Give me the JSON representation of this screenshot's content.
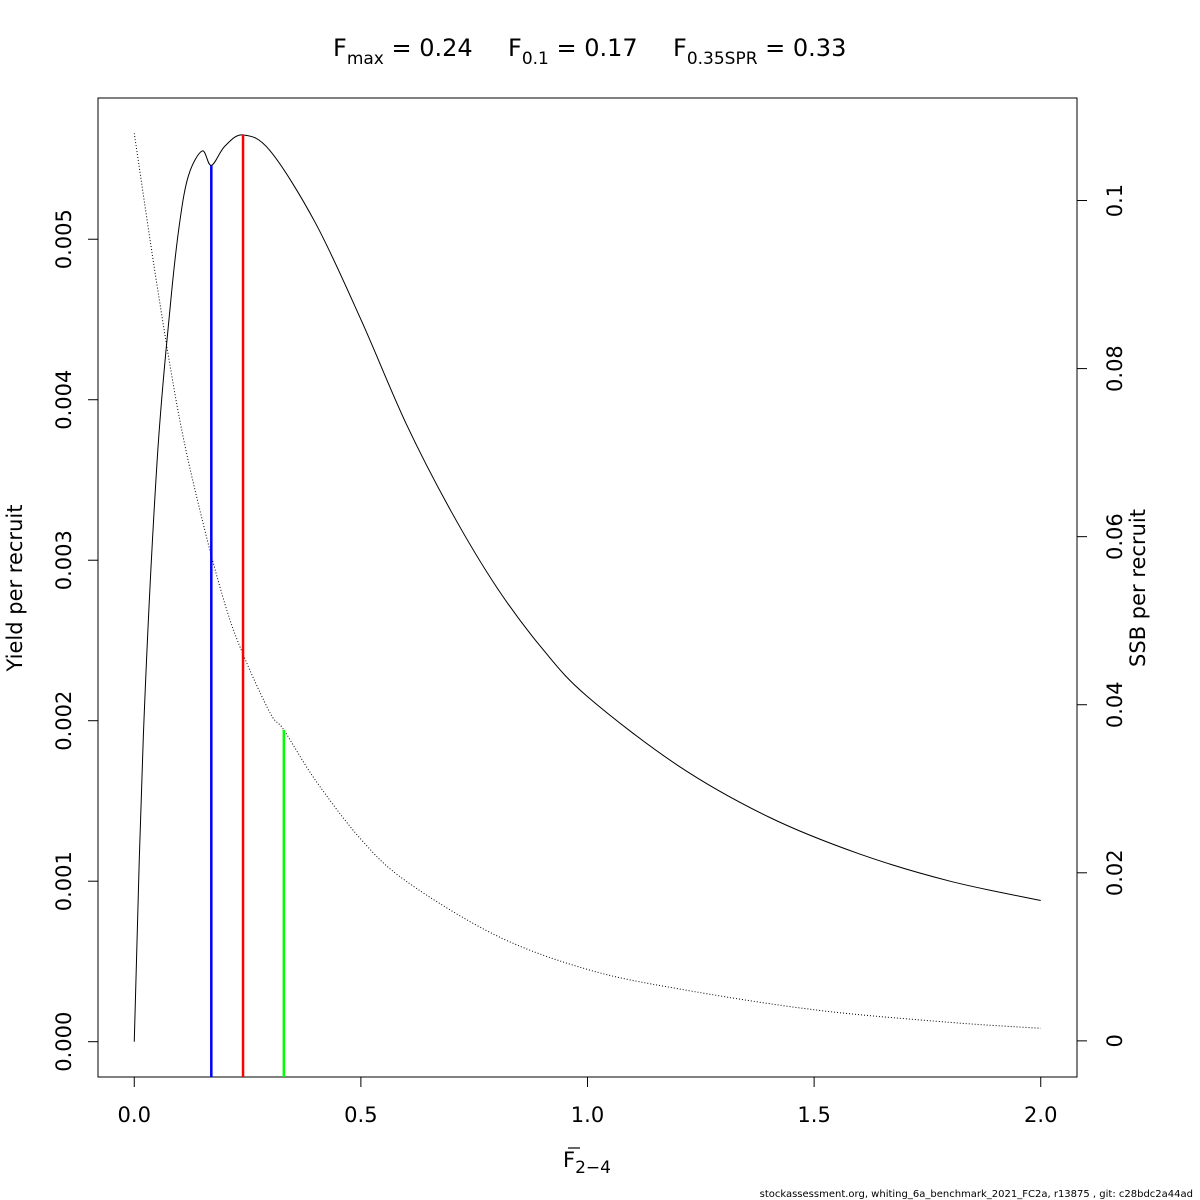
{
  "chart_data": {
    "type": "line",
    "title": {
      "fmax": {
        "main": "F",
        "sub": "max",
        "value": " = 0.24"
      },
      "f01": {
        "main": "F",
        "sub": "0.1",
        "value": " = 0.17"
      },
      "fspr": {
        "main": "F",
        "sub": "0.35SPR",
        "value": " = 0.33"
      }
    },
    "xlabel": {
      "main": "F",
      "sub": "2−4"
    },
    "ylabel_left": "Yield per recruit",
    "ylabel_right": "SSB per recruit",
    "xlim": [
      -0.08,
      2.08
    ],
    "ylim_left": [
      -0.00022,
      0.00588
    ],
    "ylim_right": [
      -0.0043,
      0.1122
    ],
    "x_ticks": [
      "0.0",
      "0.5",
      "1.0",
      "1.5",
      "2.0"
    ],
    "y_left_ticks": [
      "0.000",
      "0.001",
      "0.002",
      "0.003",
      "0.004",
      "0.005"
    ],
    "y_right_ticks": [
      "0",
      "0.02",
      "0.04",
      "0.06",
      "0.08",
      "0.1"
    ],
    "grid": false,
    "series": [
      {
        "axis": "left",
        "style": "solid",
        "x": [
          0,
          0.02,
          0.05,
          0.08,
          0.1,
          0.12,
          0.15,
          0.17,
          0.2,
          0.24,
          0.3,
          0.4,
          0.5,
          0.6,
          0.7,
          0.8,
          0.9,
          1.0,
          1.2,
          1.4,
          1.6,
          1.8,
          2.0
        ],
        "y": [
          0,
          0.0019,
          0.0036,
          0.0046,
          0.0051,
          0.0054,
          0.00555,
          0.00546,
          0.00558,
          0.00565,
          0.00555,
          0.0051,
          0.0045,
          0.00385,
          0.0033,
          0.00283,
          0.00245,
          0.00215,
          0.00172,
          0.0014,
          0.00117,
          0.001,
          0.00088
        ]
      },
      {
        "axis": "right",
        "style": "dotted",
        "x": [
          0,
          0.05,
          0.1,
          0.15,
          0.2,
          0.24,
          0.3,
          0.33,
          0.4,
          0.5,
          0.6,
          0.8,
          1.0,
          1.2,
          1.5,
          1.8,
          2.0
        ],
        "y": [
          0.108,
          0.09,
          0.074,
          0.062,
          0.052,
          0.046,
          0.039,
          0.037,
          0.031,
          0.024,
          0.019,
          0.0125,
          0.0085,
          0.0062,
          0.0037,
          0.0022,
          0.0015
        ]
      }
    ],
    "reference_lines": [
      {
        "x": 0.17,
        "y_top": 0.00546,
        "axis": "left",
        "color": "#0000ff"
      },
      {
        "x": 0.24,
        "y_top": 0.00565,
        "axis": "left",
        "color": "#ff0000"
      },
      {
        "x": 0.33,
        "y_top": 0.037,
        "axis": "right",
        "color": "#00ff00"
      }
    ]
  },
  "footer": "stockassessment.org, whiting_6a_benchmark_2021_FC2a, r13875 , git: c28bdc2a44ad"
}
